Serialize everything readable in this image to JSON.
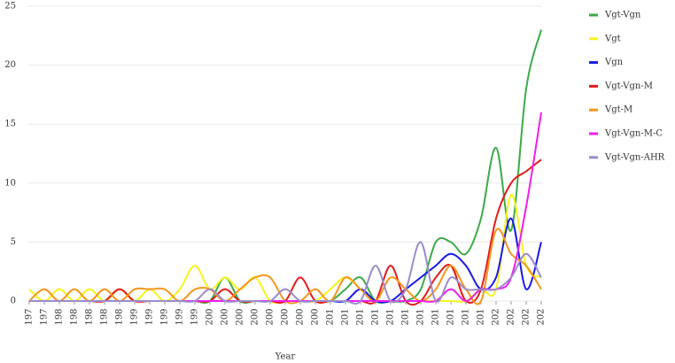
{
  "chart_data": {
    "type": "line",
    "x_label": "Year",
    "categories": [
      "197",
      "197",
      "198",
      "198",
      "198",
      "198",
      "198",
      "199",
      "199",
      "199",
      "199",
      "199",
      "200",
      "200",
      "200",
      "200",
      "200",
      "200",
      "200",
      "200",
      "201",
      "201",
      "201",
      "201",
      "201",
      "201",
      "201",
      "201",
      "201",
      "201",
      "201",
      "202",
      "202",
      "202",
      "202"
    ],
    "ylim": [
      0,
      25
    ],
    "yticks": [
      0,
      5,
      10,
      15,
      20,
      25
    ],
    "legend": "right",
    "series": [
      {
        "name": "Vgt-Vgn",
        "color": "#3caa48",
        "values": [
          0,
          0,
          0,
          0,
          0,
          0,
          0,
          0,
          0,
          0,
          0,
          0,
          0,
          2,
          0,
          0,
          0,
          0,
          0,
          0,
          0,
          1,
          2,
          0,
          0,
          0,
          1,
          5,
          5,
          4,
          7,
          13,
          6,
          18,
          23
        ]
      },
      {
        "name": "Vgt",
        "color": "#f5f51e",
        "values": [
          1,
          0,
          1,
          0,
          1,
          0,
          1,
          0,
          1,
          0,
          1,
          3,
          1,
          2,
          1,
          2,
          0,
          0,
          0,
          0,
          1,
          2,
          1,
          0,
          0,
          0,
          0,
          0,
          0,
          0,
          1,
          1,
          9,
          3,
          2
        ]
      },
      {
        "name": "Vgn",
        "color": "#1a1ae6",
        "values": [
          0,
          0,
          0,
          0,
          0,
          0,
          0,
          0,
          0,
          0,
          0,
          0,
          0,
          0,
          0,
          0,
          0,
          0,
          0,
          0,
          0,
          0,
          1,
          0,
          0,
          1,
          2,
          3,
          4,
          3,
          1,
          2,
          7,
          1,
          5
        ]
      },
      {
        "name": "Vgt-Vgn-M",
        "color": "#e61a1a",
        "values": [
          0,
          0,
          0,
          0,
          0,
          0,
          1,
          0,
          0,
          0,
          0,
          0,
          0,
          1,
          0,
          0,
          0,
          0,
          2,
          0,
          0,
          0,
          0,
          0,
          3,
          0,
          0,
          2,
          3,
          0,
          1,
          7,
          10,
          11,
          12
        ]
      },
      {
        "name": "Vgt-M",
        "color": "#f5961e",
        "values": [
          0,
          1,
          0,
          1,
          0,
          1,
          0,
          1,
          1,
          1,
          0,
          1,
          1,
          0,
          1,
          2,
          2,
          0,
          0,
          1,
          0,
          2,
          1,
          0,
          2,
          1,
          0,
          1,
          3,
          1,
          0,
          6,
          4,
          3,
          1
        ]
      },
      {
        "name": "Vgt-Vgn-M-C",
        "color": "#f01ef0",
        "values": [
          0,
          0,
          0,
          0,
          0,
          0,
          0,
          0,
          0,
          0,
          0,
          0,
          0,
          0,
          0,
          0,
          0,
          0,
          0,
          0,
          0,
          0,
          0,
          0,
          0,
          0,
          0,
          0,
          1,
          0,
          1,
          1,
          2,
          8,
          16
        ]
      },
      {
        "name": "Vgt-Vgn-AHR",
        "color": "#9b8ccc",
        "values": [
          0,
          0,
          0,
          0,
          0,
          0,
          0,
          0,
          0,
          0,
          0,
          0,
          1,
          0,
          0,
          0,
          0,
          1,
          0,
          0,
          0,
          0,
          0,
          3,
          0,
          1,
          5,
          0,
          2,
          1,
          1,
          1,
          2,
          4,
          2
        ]
      }
    ]
  }
}
